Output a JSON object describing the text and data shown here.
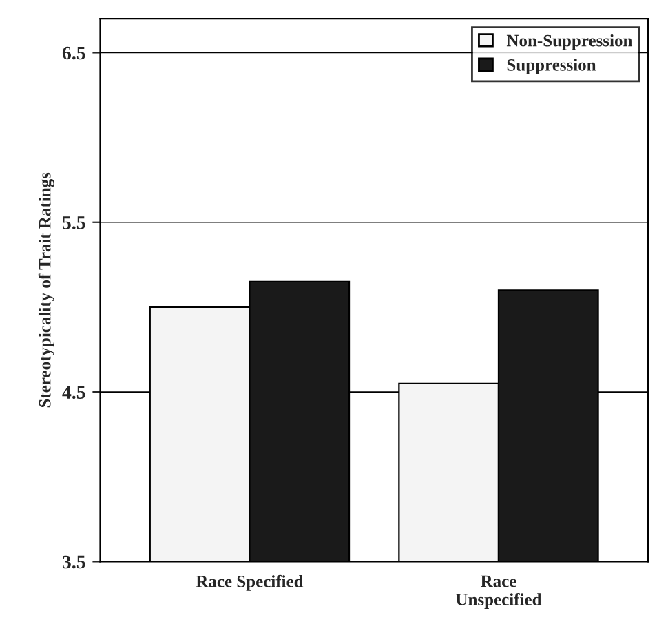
{
  "chart_data": {
    "type": "bar",
    "ylabel": "Stereotypicality of Trait Ratings",
    "categories": [
      "Race Specified",
      "Race\nUnspecified"
    ],
    "series": [
      {
        "name": "Non-Suppression",
        "color": "#f4f4f4",
        "values": [
          5.0,
          4.55
        ]
      },
      {
        "name": "Suppression",
        "color": "#1a1a1a",
        "values": [
          5.15,
          5.1
        ]
      }
    ],
    "ylim": [
      3.5,
      6.7
    ],
    "yticks": [
      3.5,
      4.5,
      5.5,
      6.5
    ],
    "grid": "y",
    "legend": "top right"
  }
}
